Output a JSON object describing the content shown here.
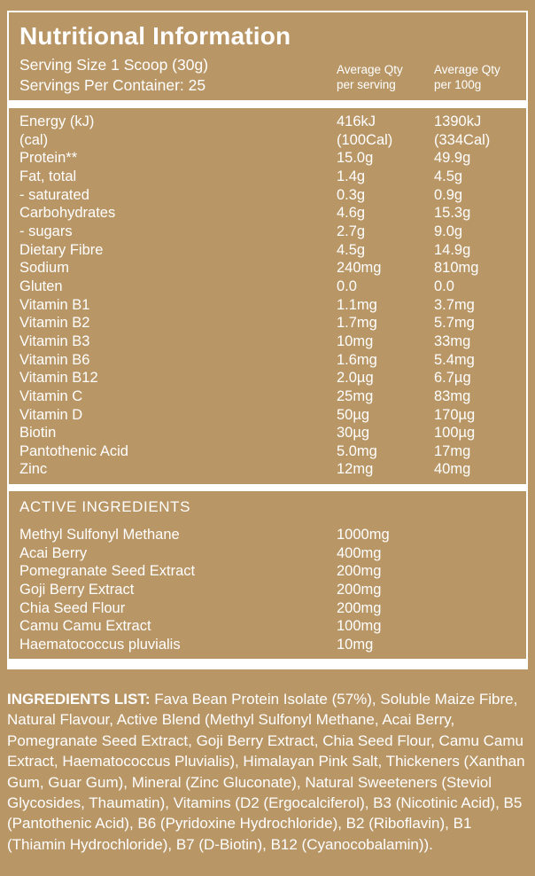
{
  "colors": {
    "background": "#B99666",
    "text": "#FFFFFF",
    "divider": "#FFFFFF"
  },
  "panel": {
    "title": "Nutritional Information",
    "serving_size": "Serving Size 1 Scoop (30g)",
    "servings_per_container": "Servings Per Container: 25",
    "column_headers": [
      {
        "line1": "Average Qty",
        "line2": "per serving"
      },
      {
        "line1": "Average Qty",
        "line2": "per 100g"
      }
    ]
  },
  "nutrition_table": {
    "rows": [
      {
        "label": "Energy (kJ)",
        "per_serving": "416kJ",
        "per_100g": "1390kJ"
      },
      {
        "label": "(cal)",
        "per_serving": "(100Cal)",
        "per_100g": "(334Cal)"
      },
      {
        "label": "Protein**",
        "per_serving": "15.0g",
        "per_100g": "49.9g"
      },
      {
        "label": "Fat, total",
        "per_serving": "1.4g",
        "per_100g": "4.5g"
      },
      {
        "label": "- saturated",
        "per_serving": "0.3g",
        "per_100g": "0.9g"
      },
      {
        "label": "Carbohydrates",
        "per_serving": "4.6g",
        "per_100g": "15.3g"
      },
      {
        "label": "- sugars",
        "per_serving": "2.7g",
        "per_100g": "9.0g"
      },
      {
        "label": "Dietary Fibre",
        "per_serving": "4.5g",
        "per_100g": "14.9g"
      },
      {
        "label": "Sodium",
        "per_serving": "240mg",
        "per_100g": "810mg"
      },
      {
        "label": "Gluten",
        "per_serving": "0.0",
        "per_100g": "0.0"
      },
      {
        "label": "Vitamin B1",
        "per_serving": "1.1mg",
        "per_100g": "3.7mg"
      },
      {
        "label": "Vitamin B2",
        "per_serving": "1.7mg",
        "per_100g": "5.7mg"
      },
      {
        "label": "Vitamin B3",
        "per_serving": "10mg",
        "per_100g": "33mg"
      },
      {
        "label": "Vitamin B6",
        "per_serving": "1.6mg",
        "per_100g": "5.4mg"
      },
      {
        "label": "Vitamin B12",
        "per_serving": "2.0µg",
        "per_100g": "6.7µg"
      },
      {
        "label": "Vitamin C",
        "per_serving": "25mg",
        "per_100g": "83mg"
      },
      {
        "label": "Vitamin D",
        "per_serving": "50µg",
        "per_100g": "170µg"
      },
      {
        "label": "Biotin",
        "per_serving": "30µg",
        "per_100g": "100µg"
      },
      {
        "label": "Pantothenic Acid",
        "per_serving": "5.0mg",
        "per_100g": "17mg"
      },
      {
        "label": "Zinc",
        "per_serving": "12mg",
        "per_100g": "40mg"
      }
    ]
  },
  "active_ingredients": {
    "heading": "ACTIVE INGREDIENTS",
    "rows": [
      {
        "label": "Methyl Sulfonyl Methane",
        "amount": "1000mg"
      },
      {
        "label": "Acai Berry",
        "amount": "400mg"
      },
      {
        "label": "Pomegranate Seed Extract",
        "amount": "200mg"
      },
      {
        "label": "Goji Berry Extract",
        "amount": "200mg"
      },
      {
        "label": "Chia Seed Flour",
        "amount": "200mg"
      },
      {
        "label": "Camu Camu Extract",
        "amount": "100mg"
      },
      {
        "label": "Haematococcus pluvialis",
        "amount": "10mg"
      }
    ]
  },
  "ingredients_list": {
    "label": "INGREDIENTS LIST:",
    "text": " Fava Bean Protein Isolate (57%), Soluble Maize Fibre, Natural Flavour, Active Blend (Methyl Sulfonyl Methane, Acai Berry, Pomegranate Seed Extract, Goji Berry Extract, Chia Seed Flour, Camu Camu Extract, Haematococcus Pluvialis), Himalayan Pink Salt, Thickeners (Xanthan Gum, Guar Gum), Mineral (Zinc Gluconate), Natural Sweeteners (Steviol Glycosides, Thaumatin), Vitamins (D2 (Ergocalciferol), B3 (Nicotinic Acid), B5 (Pantothenic Acid), B6 (Pyridoxine Hydrochloride), B2 (Riboflavin), B1 (Thiamin Hydrochloride), B7 (D-Biotin), B12 (Cyanocobalamin))."
  }
}
